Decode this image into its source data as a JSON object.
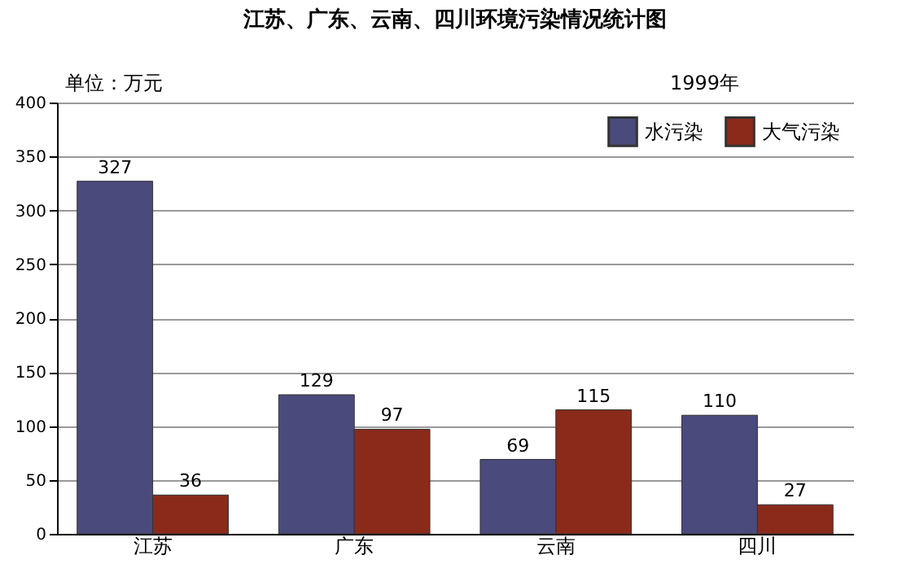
{
  "chart_data": {
    "type": "bar",
    "title": "江苏、广东、云南、四川环境污染情况统计图",
    "annotations": [
      "单位：万元",
      "1999年"
    ],
    "categories": [
      "江苏",
      "广东",
      "云南",
      "四川"
    ],
    "series": [
      {
        "name": "水污染",
        "color": "#4a4a7c",
        "values": [
          327,
          129,
          69,
          110
        ]
      },
      {
        "name": "大气污染",
        "color": "#8a2a1a",
        "values": [
          36,
          97,
          115,
          27
        ]
      }
    ],
    "ylim": [
      0,
      400
    ],
    "yticks": [
      0,
      50,
      100,
      150,
      200,
      250,
      300,
      350,
      400
    ],
    "grid": "y",
    "legend": "top right",
    "data_labels": true
  }
}
